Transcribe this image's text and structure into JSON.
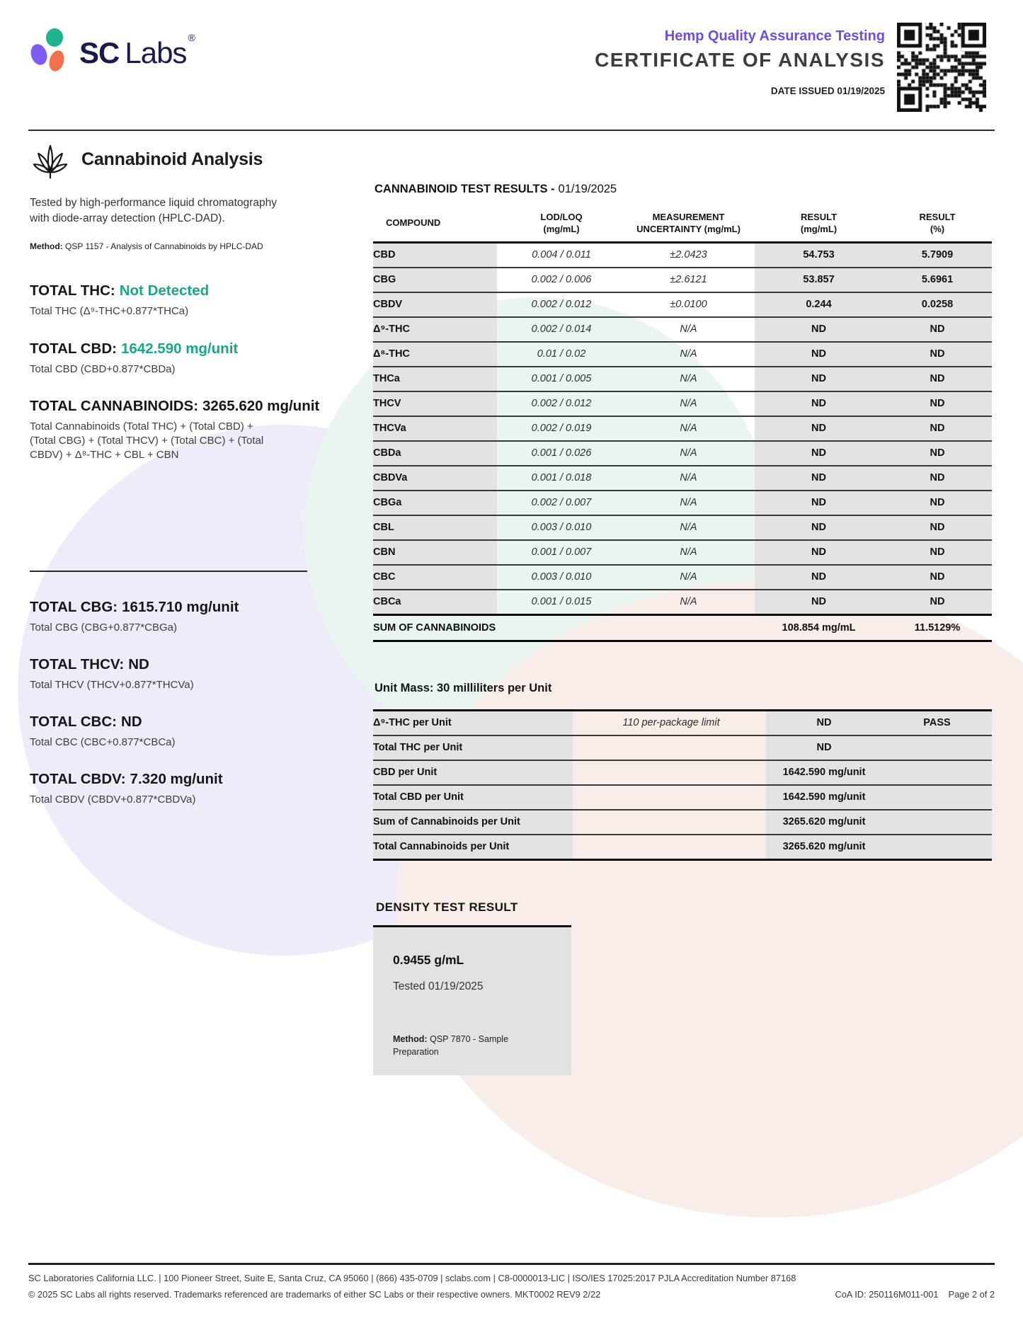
{
  "header": {
    "brand_sc": "SC",
    "brand_labs": "Labs",
    "registered_mark": "®",
    "program_title": "Hemp Quality Assurance Testing",
    "document_title": "CERTIFICATE OF ANALYSIS",
    "date_issued": "DATE ISSUED 01/19/2025",
    "qr_icon": "qr-code-icon"
  },
  "left_panel": {
    "leaf_icon": "cannabis-leaf-icon",
    "section_title": "Cannabinoid Analysis",
    "description": "Tested by high-performance liquid chromatography with diode-array detection (HPLC-DAD).",
    "method_label": "Method:",
    "method_value": "QSP 1157 - Analysis of Cannabinoids by HPLC-DAD",
    "totals": [
      {
        "label": "TOTAL THC:",
        "value": "Not Detected",
        "formula": "Total THC (Δ⁹-THC+0.877*THCa)"
      },
      {
        "label": "TOTAL CBD:",
        "value": "1642.590 mg/unit",
        "formula": "Total CBD (CBD+0.877*CBDa)"
      },
      {
        "label": "TOTAL CANNABINOIDS:",
        "value": "3265.620 mg/unit",
        "formula": "Total Cannabinoids (Total THC) + (Total CBD) + (Total CBG) + (Total THCV) + (Total CBC) + (Total CBDV) + Δ⁸-THC + CBL + CBN"
      },
      {
        "label": "TOTAL CBG:",
        "value": "1615.710 mg/unit",
        "formula": "Total CBG (CBG+0.877*CBGa)"
      },
      {
        "label": "TOTAL THCV:",
        "value": "ND",
        "formula": "Total THCV (THCV+0.877*THCVa)"
      },
      {
        "label": "TOTAL CBC:",
        "value": "ND",
        "formula": "Total CBC (CBC+0.877*CBCa)"
      },
      {
        "label": "TOTAL CBDV:",
        "value": "7.320 mg/unit",
        "formula": "Total CBDV (CBDV+0.877*CBDVa)"
      }
    ]
  },
  "results_table": {
    "heading_bold": "CANNABINOID TEST RESULTS -",
    "heading_date": "01/19/2025",
    "columns": {
      "compound": {
        "l1": "COMPOUND",
        "l2": ""
      },
      "lod": {
        "l1": "LOD/LOQ",
        "l2": "(mg/mL)"
      },
      "uncertainty": {
        "l1": "MEASUREMENT",
        "l2": "UNCERTAINTY (mg/mL)"
      },
      "result_mg": {
        "l1": "RESULT",
        "l2": "(mg/mL)"
      },
      "result_pct": {
        "l1": "RESULT",
        "l2": "(%)"
      }
    },
    "rows": [
      {
        "compound": "CBD",
        "lod": "0.004 / 0.011",
        "unc": "±2.0423",
        "mg": "54.753",
        "pct": "5.7909"
      },
      {
        "compound": "CBG",
        "lod": "0.002 / 0.006",
        "unc": "±2.6121",
        "mg": "53.857",
        "pct": "5.6961"
      },
      {
        "compound": "CBDV",
        "lod": "0.002 / 0.012",
        "unc": "±0.0100",
        "mg": "0.244",
        "pct": "0.0258"
      },
      {
        "compound": "Δ⁹-THC",
        "lod": "0.002 / 0.014",
        "unc": "N/A",
        "mg": "ND",
        "pct": "ND"
      },
      {
        "compound": "Δ⁸-THC",
        "lod": "0.01 / 0.02",
        "unc": "N/A",
        "mg": "ND",
        "pct": "ND"
      },
      {
        "compound": "THCa",
        "lod": "0.001 / 0.005",
        "unc": "N/A",
        "mg": "ND",
        "pct": "ND"
      },
      {
        "compound": "THCV",
        "lod": "0.002 / 0.012",
        "unc": "N/A",
        "mg": "ND",
        "pct": "ND"
      },
      {
        "compound": "THCVa",
        "lod": "0.002 / 0.019",
        "unc": "N/A",
        "mg": "ND",
        "pct": "ND"
      },
      {
        "compound": "CBDa",
        "lod": "0.001 / 0.026",
        "unc": "N/A",
        "mg": "ND",
        "pct": "ND"
      },
      {
        "compound": "CBDVa",
        "lod": "0.001 / 0.018",
        "unc": "N/A",
        "mg": "ND",
        "pct": "ND"
      },
      {
        "compound": "CBGa",
        "lod": "0.002 / 0.007",
        "unc": "N/A",
        "mg": "ND",
        "pct": "ND"
      },
      {
        "compound": "CBL",
        "lod": "0.003 / 0.010",
        "unc": "N/A",
        "mg": "ND",
        "pct": "ND"
      },
      {
        "compound": "CBN",
        "lod": "0.001 / 0.007",
        "unc": "N/A",
        "mg": "ND",
        "pct": "ND"
      },
      {
        "compound": "CBC",
        "lod": "0.003 / 0.010",
        "unc": "N/A",
        "mg": "ND",
        "pct": "ND"
      },
      {
        "compound": "CBCa",
        "lod": "0.001 / 0.015",
        "unc": "N/A",
        "mg": "ND",
        "pct": "ND"
      }
    ],
    "sum": {
      "label": "SUM OF CANNABINOIDS",
      "mg": "108.854 mg/mL",
      "pct": "11.5129%"
    }
  },
  "unit_mass": {
    "heading": "Unit Mass: 30 milliliters per Unit",
    "rows": [
      {
        "label": "Δ⁹-THC per Unit",
        "limit": "110 per-package limit",
        "result": "ND",
        "status": "PASS"
      },
      {
        "label": "Total THC per Unit",
        "limit": "",
        "result": "ND",
        "status": ""
      },
      {
        "label": "CBD per Unit",
        "limit": "",
        "result": "1642.590 mg/unit",
        "status": ""
      },
      {
        "label": "Total CBD per Unit",
        "limit": "",
        "result": "1642.590 mg/unit",
        "status": ""
      },
      {
        "label": "Sum of Cannabinoids per Unit",
        "limit": "",
        "result": "3265.620 mg/unit",
        "status": ""
      },
      {
        "label": "Total Cannabinoids per Unit",
        "limit": "",
        "result": "3265.620 mg/unit",
        "status": ""
      }
    ]
  },
  "density": {
    "heading": "DENSITY TEST RESULT",
    "value": "0.9455 g/mL",
    "tested": "Tested 01/19/2025",
    "method_label": "Method:",
    "method_value": "QSP 7870 - Sample Preparation"
  },
  "footer": {
    "line1": "SC Laboratories California LLC. | 100 Pioneer Street, Suite E, Santa Cruz, CA 95060 | (866) 435-0709 | sclabs.com | C8-0000013-LIC | ISO/IES 17025:2017 PJLA Accreditation Number 87168",
    "line2": "© 2025 SC Labs all rights reserved. Trademarks referenced are trademarks of either SC Labs or their respective owners. MKT0002 REV9 2/22",
    "coa_id": "CoA ID: 250116M011-001",
    "page": "Page 2 of 2"
  },
  "colors": {
    "accent_purple": "#6C4EE6",
    "accent_teal": "#1BA687",
    "logo_purple": "#7C5CF5",
    "logo_green": "#1FB48C",
    "logo_orange": "#F4714E"
  }
}
